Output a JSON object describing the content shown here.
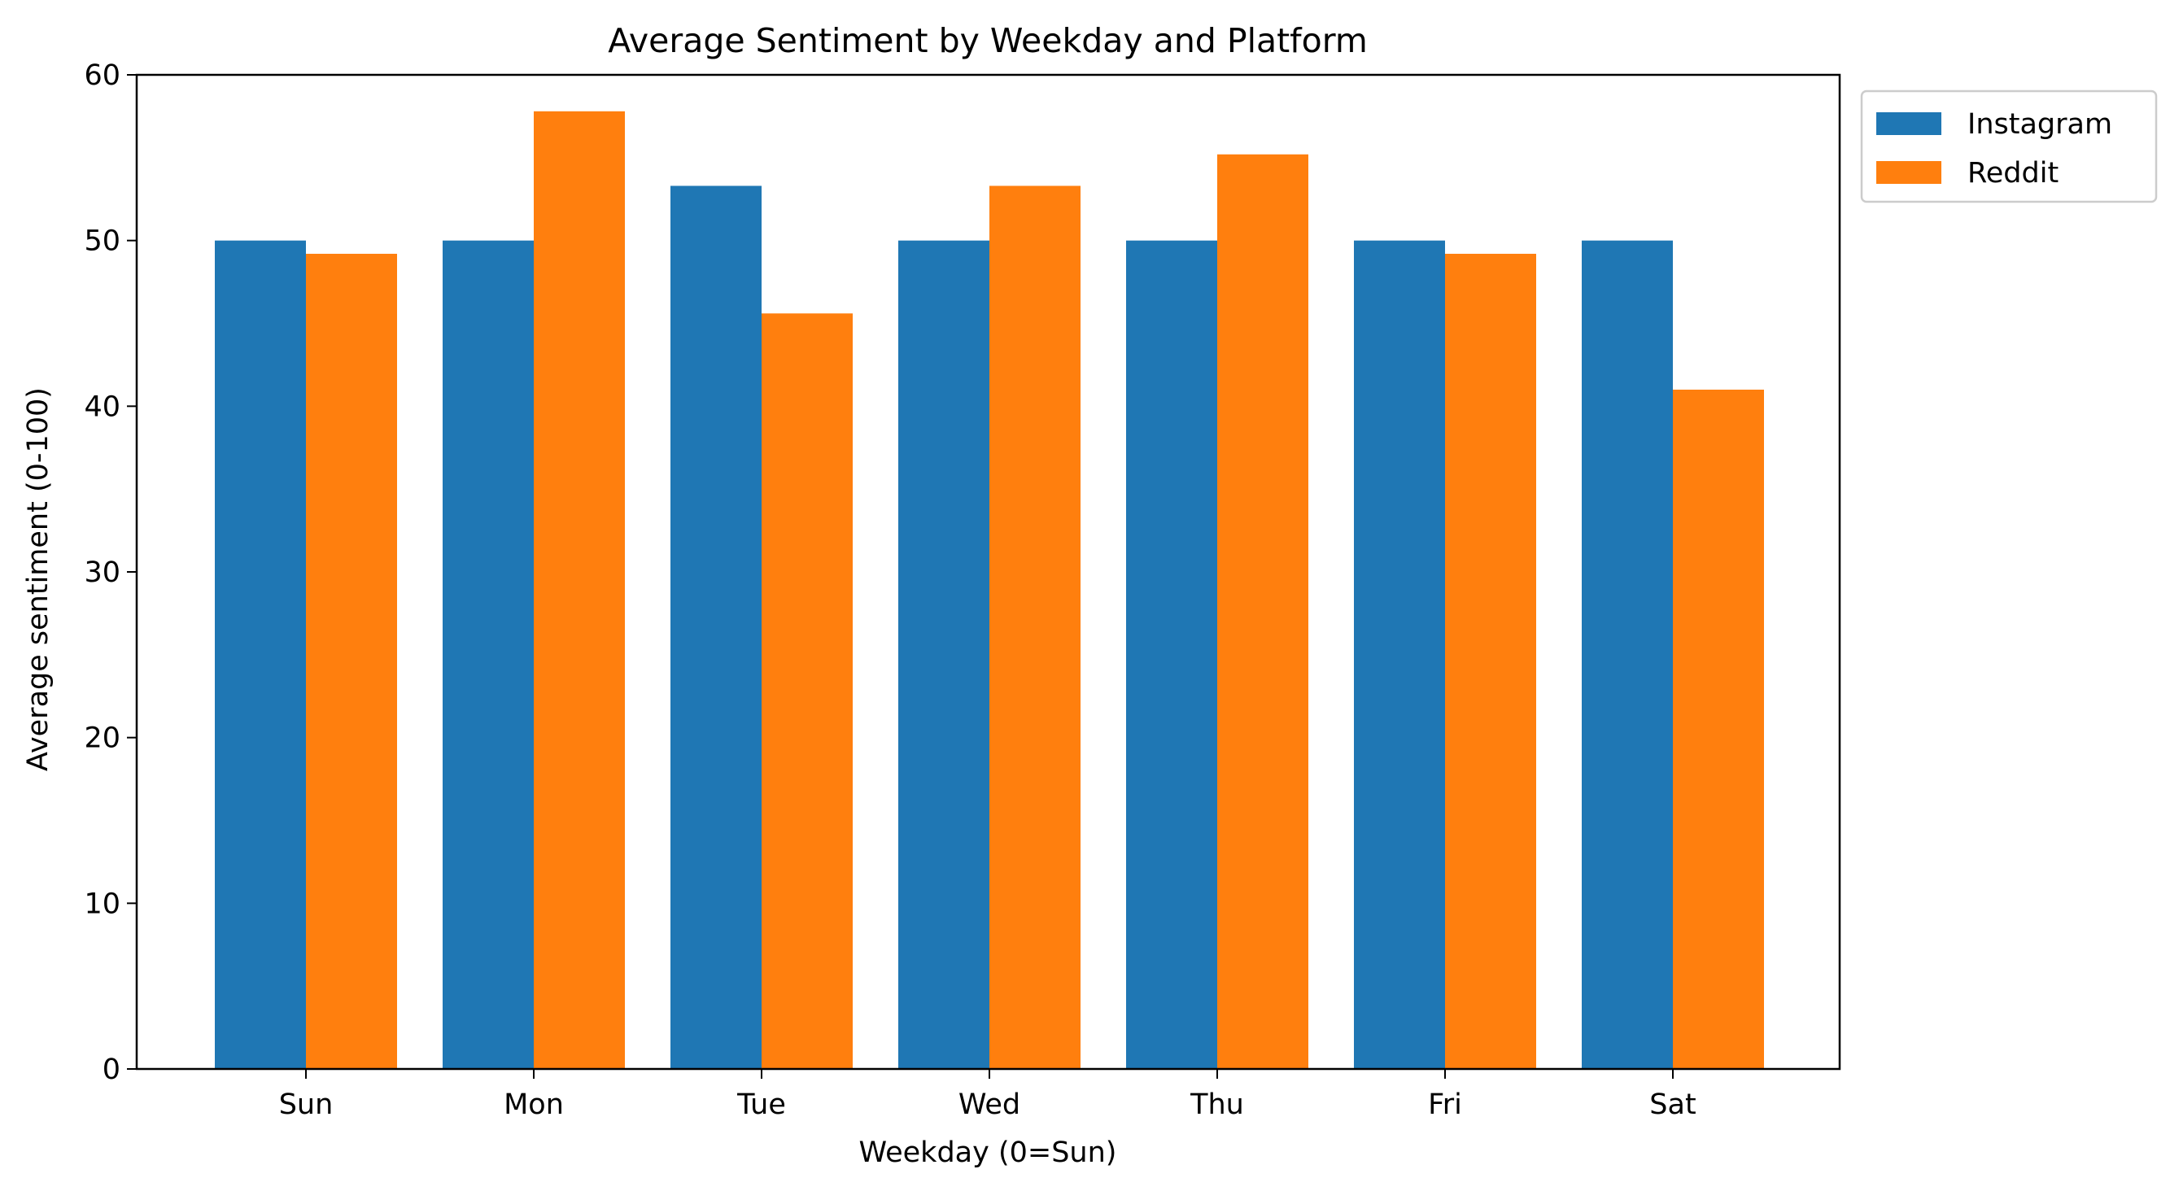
{
  "chart_data": {
    "type": "bar",
    "title": "Average Sentiment by Weekday and Platform",
    "xlabel": "Weekday (0=Sun)",
    "ylabel": "Average sentiment (0-100)",
    "categories": [
      "Sun",
      "Mon",
      "Tue",
      "Wed",
      "Thu",
      "Fri",
      "Sat"
    ],
    "series": [
      {
        "name": "Instagram",
        "color": "#1f77b4",
        "values": [
          50.0,
          50.0,
          53.3,
          50.0,
          50.0,
          50.0,
          50.0
        ]
      },
      {
        "name": "Reddit",
        "color": "#ff7f0e",
        "values": [
          49.2,
          57.8,
          45.6,
          53.3,
          55.2,
          49.2,
          41.0
        ]
      }
    ],
    "ylim": [
      0,
      60
    ],
    "yticks": [
      0,
      10,
      20,
      30,
      40,
      50,
      60
    ],
    "grid": false,
    "legend_position": "outside-top-right"
  }
}
